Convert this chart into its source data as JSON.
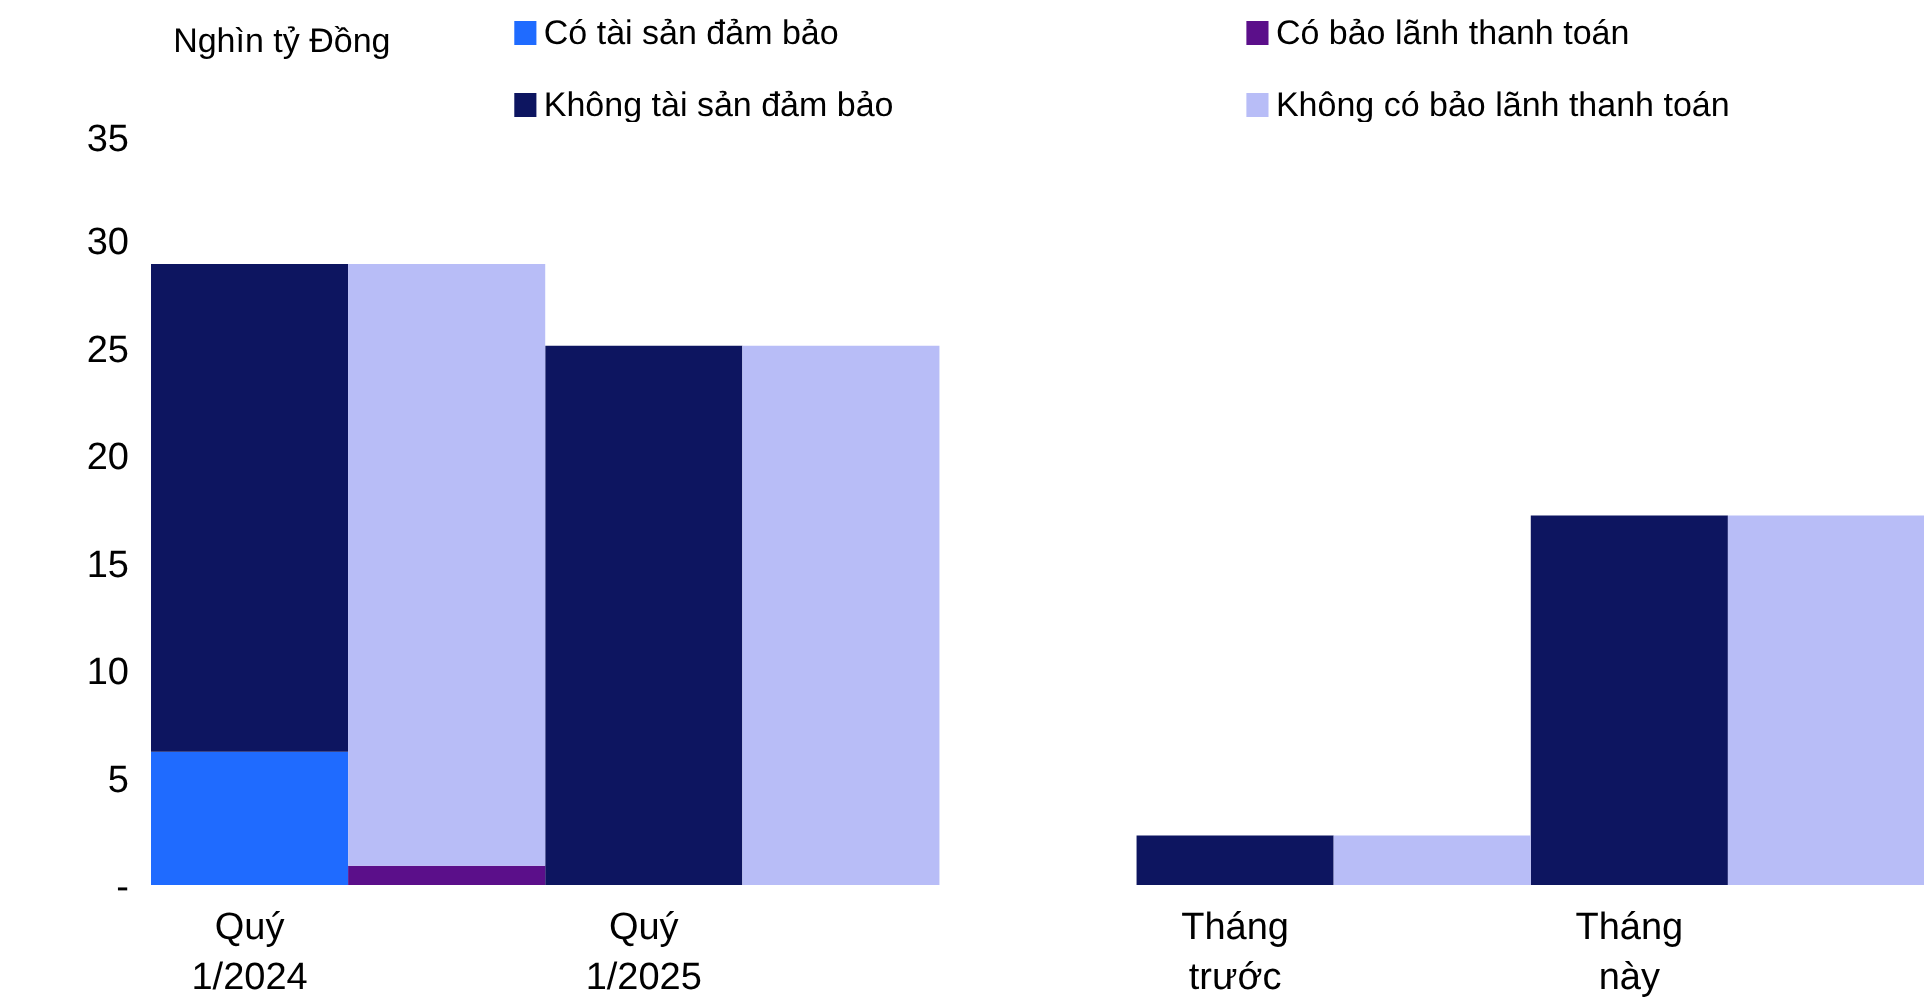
{
  "chart_data": {
    "type": "bar",
    "stacked": true,
    "ylabel": "Nghìn tỷ Đồng",
    "categories": [
      "Quý 1/2024",
      null,
      "Quý 1/2025",
      null,
      null,
      "Tháng trước",
      null,
      "Tháng này",
      null
    ],
    "series": [
      {
        "name": "Có tài sản đảm bảo",
        "color": "#1f6bff",
        "values": [
          6.2,
          null,
          null,
          null,
          null,
          null,
          null,
          null,
          null
        ]
      },
      {
        "name": "Không tài sản đảm bảo",
        "color": "#0d1560",
        "values": [
          22.7,
          null,
          25.1,
          null,
          null,
          2.3,
          null,
          17.2,
          null
        ]
      },
      {
        "name": "Có bảo lãnh thanh toán",
        "color": "#5b0f8a",
        "values": [
          null,
          0.9,
          null,
          null,
          null,
          null,
          null,
          null,
          null
        ]
      },
      {
        "name": "Không có bảo lãnh thanh toán",
        "color": "#b8bdf7",
        "values": [
          null,
          28.0,
          null,
          25.1,
          null,
          null,
          2.3,
          null,
          17.2
        ]
      }
    ],
    "ylim": [
      0,
      35
    ],
    "yticks": [
      {
        "value": 0,
        "label": "-"
      },
      5,
      10,
      15,
      20,
      25,
      30,
      35
    ],
    "grid": false,
    "legend": "top"
  }
}
